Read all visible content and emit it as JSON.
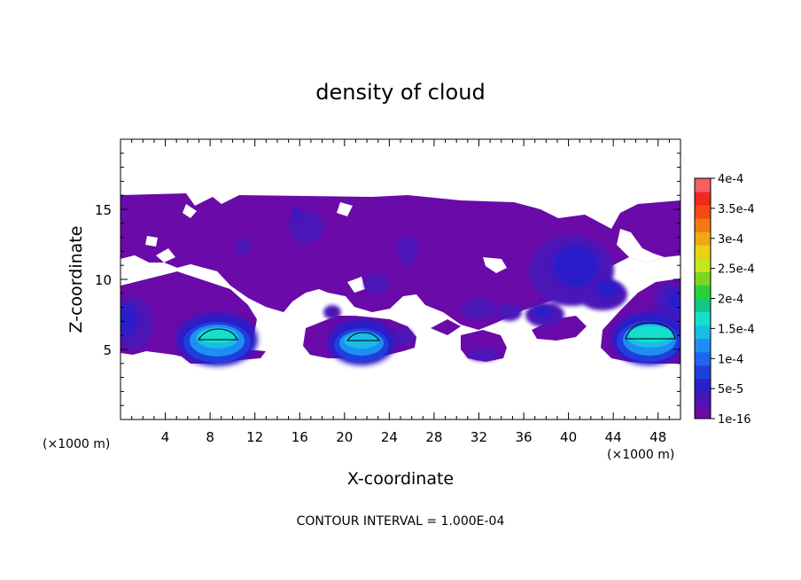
{
  "chart_data": {
    "type": "heatmap",
    "title": "density of cloud",
    "xlabel": "X-coordinate",
    "ylabel": "Z-coordinate",
    "x_unit_left": "(×1000 m)",
    "x_unit_right": "(×1000 m)",
    "footer": "CONTOUR INTERVAL = 1.000E-04",
    "xlim": [
      0,
      50
    ],
    "ylim": [
      0,
      20
    ],
    "x_ticks": [
      4,
      8,
      12,
      16,
      20,
      24,
      28,
      32,
      36,
      40,
      44,
      48
    ],
    "x_tick_labels": [
      "4",
      "8",
      "12",
      "16",
      "20",
      "24",
      "28",
      "32",
      "36",
      "40",
      "44",
      "48"
    ],
    "y_ticks": [
      5,
      10,
      15
    ],
    "y_tick_labels": [
      "5",
      "10",
      "15"
    ],
    "colorbar": {
      "levels": [
        "1e-16",
        "5e-5",
        "1e-4",
        "1.5e-4",
        "2e-4",
        "2.5e-4",
        "3e-4",
        "3.5e-4",
        "4e-4"
      ],
      "colors": [
        "#6a0aa8",
        "#4b14b8",
        "#2a1fc8",
        "#1f3fdc",
        "#1f66ee",
        "#1e8ff2",
        "#19bde6",
        "#14e0cc",
        "#10c88a",
        "#28d13a",
        "#7ad61e",
        "#c8e61e",
        "#e8d214",
        "#f0a814",
        "#f57a12",
        "#f54a14",
        "#f0281e",
        "#f26060"
      ]
    },
    "annotations": [
      {
        "type": "contour",
        "level": 0.0001,
        "x_range": [
          7.2,
          10.8
        ],
        "z": 5.8
      },
      {
        "type": "contour",
        "level": 0.0001,
        "x_range": [
          20.3,
          23.8
        ],
        "z": 5.8
      },
      {
        "type": "contour",
        "level": 0.0001,
        "x_range": [
          45,
          49.8
        ],
        "z": 5.8
      }
    ]
  }
}
